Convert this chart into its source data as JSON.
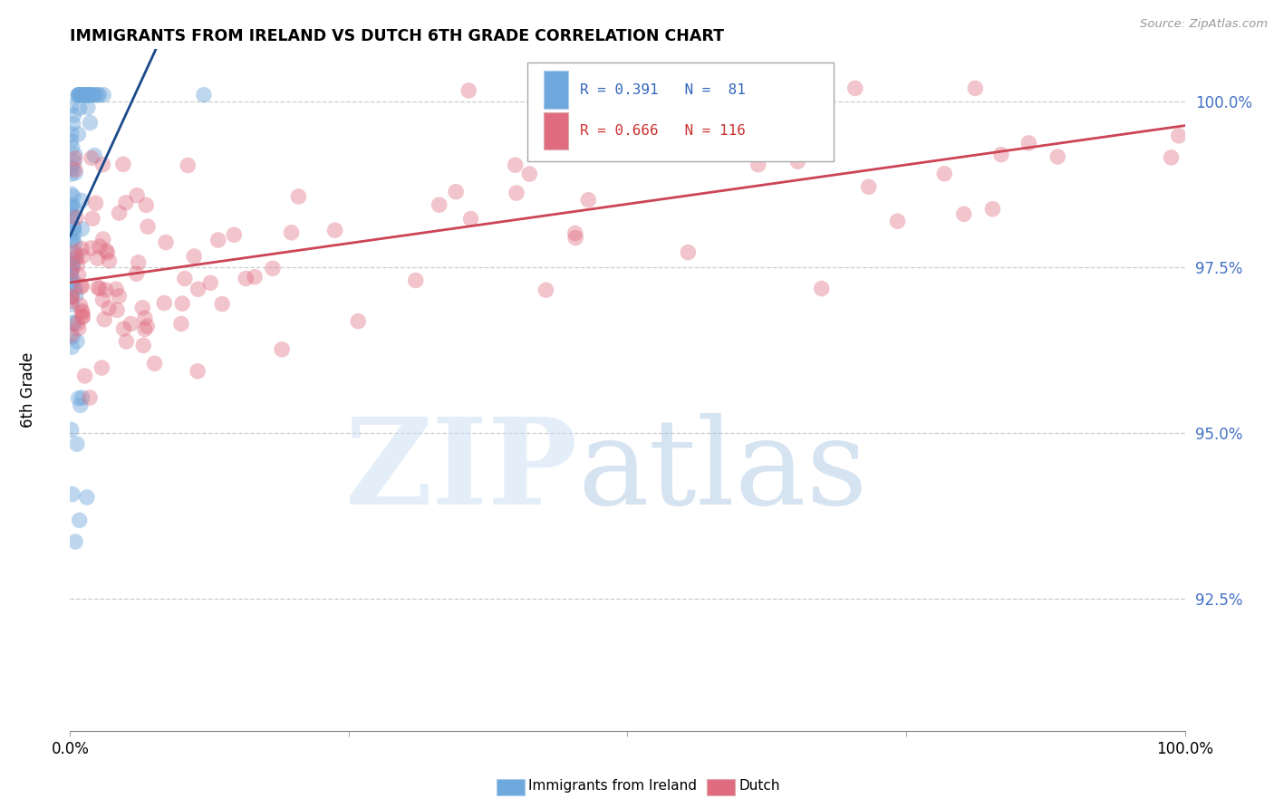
{
  "title": "IMMIGRANTS FROM IRELAND VS DUTCH 6TH GRADE CORRELATION CHART",
  "source": "Source: ZipAtlas.com",
  "ylabel": "6th Grade",
  "ytick_labels": [
    "100.0%",
    "97.5%",
    "95.0%",
    "92.5%"
  ],
  "ytick_values": [
    1.0,
    0.975,
    0.95,
    0.925
  ],
  "xmin": 0.0,
  "xmax": 1.0,
  "ymin": 0.905,
  "ymax": 1.008,
  "blue_R": 0.391,
  "blue_N": 81,
  "pink_R": 0.666,
  "pink_N": 116,
  "blue_color": "#6fa8dc",
  "pink_color": "#e06c80",
  "blue_line_color": "#1a4a8a",
  "pink_line_color": "#cc4455",
  "legend_blue_label": "Immigrants from Ireland",
  "legend_pink_label": "Dutch"
}
